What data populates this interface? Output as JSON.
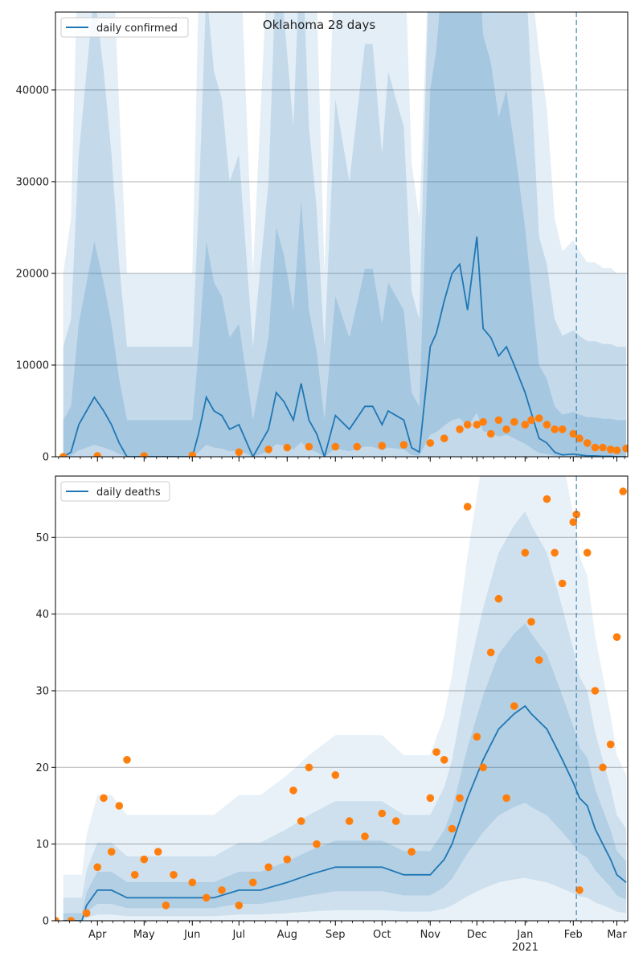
{
  "chart_data": [
    {
      "type": "line",
      "title": "Oklahoma 28 days",
      "xlabel": "",
      "ylabel": "",
      "ylim": [
        0,
        48500
      ],
      "yticks": [
        0,
        10000,
        20000,
        30000,
        40000
      ],
      "ytick_labels": [
        "0",
        "10000",
        "20000",
        "30000",
        "40000"
      ],
      "grid": "horizontal",
      "legend_position": "top-left",
      "legend_label": "daily confirmed",
      "forecast_start_marker": "Feb",
      "colors": {
        "line": "#1f77b4",
        "points": "#ff7f0e",
        "band": "#1f77b4"
      },
      "series": [
        {
          "name": "daily confirmed",
          "x": [
            "Mar 10",
            "Mar 15",
            "Mar 20",
            "Mar 25",
            "Mar 30",
            "Apr 5",
            "Apr 10",
            "Apr 15",
            "Apr 20",
            "May 1",
            "May 15",
            "Jun 1",
            "Jun 5",
            "Jun 10",
            "Jun 15",
            "Jun 20",
            "Jun 25",
            "Jul 1",
            "Jul 10",
            "Jul 20",
            "Jul 25",
            "Jul 30",
            "Aug 5",
            "Aug 10",
            "Aug 15",
            "Aug 20",
            "Aug 25",
            "Sep 1",
            "Sep 10",
            "Sep 20",
            "Sep 25",
            "Oct 1",
            "Oct 5",
            "Oct 10",
            "Oct 15",
            "Oct 20",
            "Oct 25",
            "Nov 1",
            "Nov 5",
            "Nov 10",
            "Nov 15",
            "Nov 20",
            "Nov 25",
            "Dec 1",
            "Dec 5",
            "Dec 10",
            "Dec 15",
            "Dec 20",
            "Dec 25",
            "Jan 1",
            "Jan 10",
            "Jan 15",
            "Jan 20",
            "Jan 25",
            "Feb 1",
            "Feb 5",
            "Feb 10",
            "Feb 15",
            "Feb 20",
            "Feb 25",
            "Mar 1",
            "Mar 7"
          ],
          "values": [
            0,
            500,
            3500,
            5000,
            6500,
            5000,
            3500,
            1500,
            0,
            0,
            0,
            0,
            2500,
            6500,
            5000,
            4500,
            3000,
            3500,
            0,
            3000,
            7000,
            6000,
            4000,
            8000,
            4000,
            2500,
            0,
            4500,
            3000,
            5500,
            5500,
            3500,
            5000,
            4500,
            4000,
            1000,
            500,
            12000,
            13500,
            17000,
            20000,
            21000,
            16000,
            24000,
            14000,
            13000,
            11000,
            12000,
            10000,
            7000,
            2000,
            1500,
            500,
            200,
            300,
            200,
            100,
            100,
            50,
            50,
            0,
            0
          ]
        },
        {
          "name": "",
          "style": "points",
          "x": [
            "Mar 10",
            "Apr 1",
            "May 1",
            "Jun 1",
            "Jul 1",
            "Jul 20",
            "Aug 1",
            "Aug 15",
            "Sep 1",
            "Sep 15",
            "Oct 1",
            "Oct 15",
            "Nov 1",
            "Nov 10",
            "Nov 20",
            "Nov 25",
            "Dec 1",
            "Dec 5",
            "Dec 10",
            "Dec 15",
            "Dec 20",
            "Dec 25",
            "Jan 1",
            "Jan 5",
            "Jan 10",
            "Jan 15",
            "Jan 20",
            "Jan 25",
            "Feb 1",
            "Feb 5",
            "Feb 10",
            "Feb 15",
            "Feb 20",
            "Feb 25",
            "Mar 1",
            "Mar 7"
          ],
          "values": [
            0,
            100,
            100,
            150,
            500,
            800,
            1000,
            1100,
            1100,
            1100,
            1200,
            1300,
            1500,
            2000,
            3000,
            3500,
            3500,
            3800,
            2500,
            4000,
            3000,
            3800,
            3500,
            4000,
            4200,
            3500,
            3000,
            3000,
            2500,
            2000,
            1500,
            1000,
            1000,
            800,
            700,
            900
          ]
        }
      ]
    },
    {
      "type": "line",
      "title": "",
      "xlabel": "",
      "ylabel": "",
      "ylim": [
        0,
        58
      ],
      "yticks": [
        0,
        10,
        20,
        30,
        40,
        50
      ],
      "ytick_labels": [
        "0",
        "10",
        "20",
        "30",
        "40",
        "50"
      ],
      "grid": "horizontal",
      "legend_position": "top-left",
      "legend_label": "daily deaths",
      "forecast_start_marker": "Feb",
      "x_tick_labels": [
        "Apr",
        "May",
        "Jun",
        "Jul",
        "Aug",
        "Sep",
        "Oct",
        "Nov",
        "Dec",
        "Jan",
        "Feb",
        "Mar"
      ],
      "x_tick_sublabels": [
        "",
        "",
        "",
        "",
        "",
        "",
        "",
        "",
        "",
        "2021",
        "",
        ""
      ],
      "colors": {
        "line": "#1f77b4",
        "points": "#ff7f0e",
        "band": "#1f77b4"
      },
      "series": [
        {
          "name": "daily deaths",
          "x": [
            "Mar 10",
            "Mar 18",
            "Mar 22",
            "Mar 25",
            "Apr 1",
            "Apr 10",
            "Apr 20",
            "May 1",
            "May 10",
            "May 20",
            "Jun 1",
            "Jun 15",
            "Jul 1",
            "Jul 15",
            "Aug 1",
            "Aug 15",
            "Sep 1",
            "Sep 15",
            "Oct 1",
            "Oct 15",
            "Nov 1",
            "Nov 10",
            "Nov 15",
            "Nov 20",
            "Nov 25",
            "Dec 1",
            "Dec 5",
            "Dec 10",
            "Dec 15",
            "Dec 20",
            "Dec 25",
            "Jan 1",
            "Jan 5",
            "Jan 10",
            "Jan 15",
            "Jan 20",
            "Jan 25",
            "Feb 1",
            "Feb 5",
            "Feb 10",
            "Feb 15",
            "Feb 20",
            "Feb 25",
            "Mar 1",
            "Mar 7"
          ],
          "values": [
            0,
            0,
            0,
            2,
            4,
            4,
            3,
            3,
            3,
            3,
            3,
            3,
            4,
            4,
            5,
            6,
            7,
            7,
            7,
            6,
            6,
            8,
            10,
            13,
            16,
            19,
            21,
            23,
            25,
            26,
            27,
            28,
            27,
            26,
            25,
            23,
            21,
            18,
            16,
            15,
            12,
            10,
            8,
            6,
            5
          ]
        },
        {
          "name": "",
          "style": "points",
          "x": [
            "Mar 5",
            "Mar 15",
            "Mar 25",
            "Apr 1",
            "Apr 5",
            "Apr 10",
            "Apr 15",
            "Apr 20",
            "Apr 25",
            "May 1",
            "May 10",
            "May 15",
            "May 20",
            "Jun 1",
            "Jun 10",
            "Jun 20",
            "Jul 1",
            "Jul 10",
            "Jul 20",
            "Aug 1",
            "Aug 5",
            "Aug 10",
            "Aug 15",
            "Aug 20",
            "Sep 1",
            "Sep 10",
            "Sep 20",
            "Oct 1",
            "Oct 10",
            "Oct 20",
            "Nov 1",
            "Nov 5",
            "Nov 10",
            "Nov 15",
            "Nov 20",
            "Nov 25",
            "Dec 1",
            "Dec 5",
            "Dec 10",
            "Dec 15",
            "Dec 20",
            "Dec 25",
            "Jan 1",
            "Jan 5",
            "Jan 10",
            "Jan 15",
            "Jan 20",
            "Jan 25",
            "Feb 1",
            "Feb 3",
            "Feb 5",
            "Feb 10",
            "Feb 15",
            "Feb 20",
            "Feb 25",
            "Mar 1",
            "Mar 5"
          ],
          "values": [
            0,
            0,
            1,
            7,
            16,
            9,
            15,
            21,
            6,
            8,
            9,
            2,
            6,
            5,
            3,
            4,
            2,
            5,
            7,
            8,
            17,
            13,
            20,
            10,
            19,
            13,
            11,
            14,
            13,
            9,
            16,
            22,
            21,
            12,
            16,
            54,
            24,
            20,
            35,
            42,
            16,
            28,
            48,
            39,
            34,
            55,
            48,
            44,
            52,
            53,
            4,
            48,
            30,
            20,
            23,
            37,
            56
          ]
        }
      ]
    }
  ]
}
